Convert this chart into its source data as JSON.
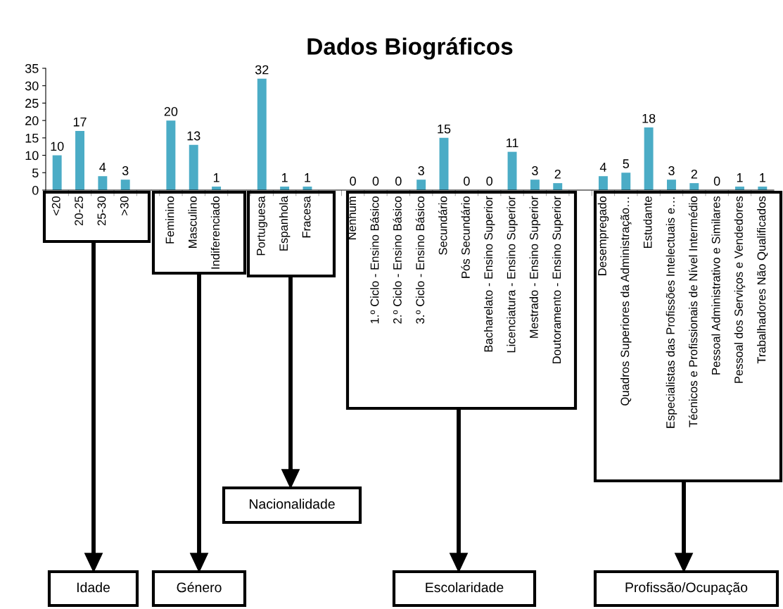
{
  "chart_data": {
    "type": "bar",
    "title": "Dados Biográficos",
    "categories": [
      "<20",
      "20-25",
      "25-30",
      ">30",
      null,
      "Feminino",
      "Masculino",
      "Indiferenciado",
      null,
      "Portuguesa",
      "Espanhola",
      "Fracesa",
      null,
      "Nenhum",
      "1.º Ciclo - Ensino Básico",
      "2.º Ciclo - Ensino Básico",
      "3.º Ciclo - Ensino Básico",
      "Secundário",
      "Pós Secundário",
      "Bacharelato - Ensino Superior",
      "Licenciatura - Ensino Superior",
      "Mestrado - Ensino Superior",
      "Doutoramento - Ensino Superior",
      null,
      "Desempregado",
      "Quadros Superiores da Administração…",
      "Estudante",
      "Especialistas das Profissões Intelectuais e…",
      "Técnicos e Profissionais de Nível Intermédio",
      "Pessoal Administrativo e Similares",
      "Pessoal dos Serviços e Vendedores",
      "Trabalhadores Não Qualificados"
    ],
    "values": [
      10,
      17,
      4,
      3,
      null,
      20,
      13,
      1,
      null,
      32,
      1,
      1,
      null,
      0,
      0,
      0,
      3,
      15,
      0,
      0,
      11,
      3,
      2,
      null,
      4,
      5,
      18,
      3,
      2,
      0,
      1,
      1
    ],
    "color": "#4bacc6",
    "ylim": [
      0,
      35
    ],
    "yticks": [
      0,
      5,
      10,
      15,
      20,
      25,
      30,
      35
    ],
    "data_labels": true,
    "grid": false,
    "annotations": [
      "Idade",
      "Género",
      "Nacionalidade",
      "Escolaridade",
      "Profissão/Ocupação"
    ]
  }
}
